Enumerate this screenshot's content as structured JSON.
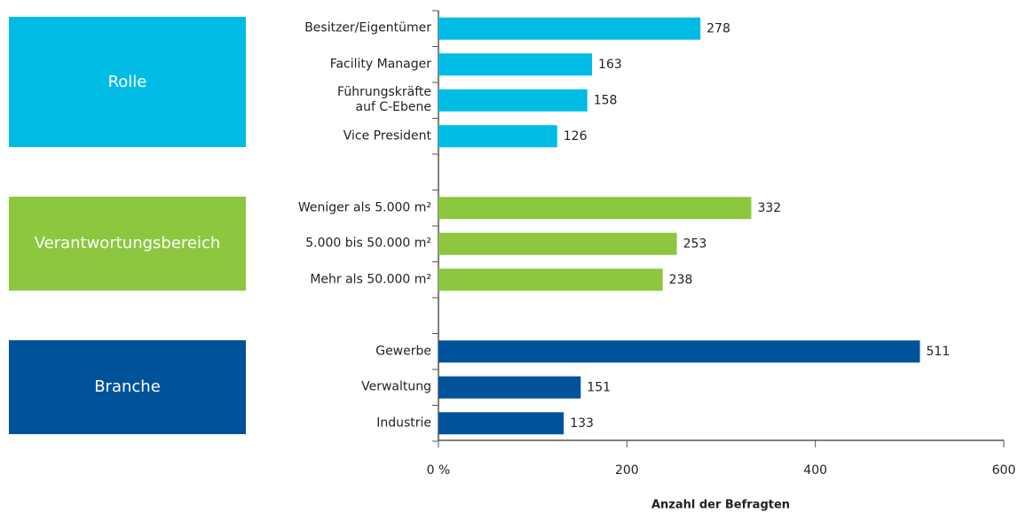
{
  "chart_data": {
    "type": "bar",
    "orientation": "horizontal",
    "groups": [
      {
        "name": "Rolle",
        "color": "#00bce4",
        "categories": [
          "Besitzer/Eigentümer",
          "Facility Manager",
          "Führungskräfte\nauf C-Ebene",
          "Vice President"
        ],
        "values": [
          278,
          163,
          158,
          126
        ]
      },
      {
        "name": "Verantwortungsbereich",
        "color": "#8dc63f",
        "categories": [
          "Weniger als 5.000 m²",
          "5.000 bis 50.000 m²",
          "Mehr als 50.000 m²"
        ],
        "values": [
          332,
          253,
          238
        ]
      },
      {
        "name": "Branche",
        "color": "#00539b",
        "categories": [
          "Gewerbe",
          "Verwaltung",
          "Industrie"
        ],
        "values": [
          511,
          151,
          133
        ]
      }
    ],
    "xlabel": "Anzahl der Befragten",
    "xlim": [
      0,
      600
    ],
    "xticks": [
      {
        "value": 0,
        "label": "0 %"
      },
      200,
      400,
      600
    ]
  }
}
